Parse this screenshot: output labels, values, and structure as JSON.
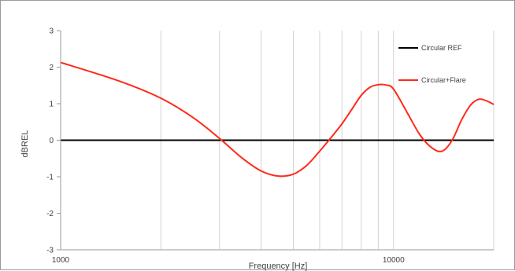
{
  "chart_data": {
    "type": "line",
    "xlabel": "Frequency [Hz]",
    "ylabel": "dBREL",
    "x_scale": "log",
    "xlim": [
      1000,
      20000
    ],
    "ylim": [
      -3,
      3
    ],
    "x_tick_labels": [
      "1000",
      "10000"
    ],
    "y_ticks": [
      -3,
      -2,
      -1,
      0,
      1,
      2,
      3
    ],
    "grid": "vertical",
    "legend_position": "top-right",
    "series": [
      {
        "name": "Circular REF",
        "color": "#000000",
        "x": [
          1000,
          20000
        ],
        "y": [
          0,
          0
        ]
      },
      {
        "name": "Circular+Flare",
        "color": "#ff2a1a",
        "x": [
          1000,
          1500,
          2000,
          2500,
          3000,
          3500,
          4000,
          4500,
          5000,
          5500,
          6000,
          6500,
          7000,
          7500,
          8000,
          8500,
          9000,
          9500,
          10000,
          11000,
          12000,
          13000,
          14000,
          15000,
          16000,
          17000,
          18000,
          19000,
          20000
        ],
        "y": [
          2.13,
          1.62,
          1.15,
          0.62,
          0.05,
          -0.48,
          -0.84,
          -0.98,
          -0.93,
          -0.68,
          -0.3,
          0.08,
          0.45,
          0.85,
          1.23,
          1.45,
          1.52,
          1.51,
          1.4,
          0.75,
          0.15,
          -0.2,
          -0.3,
          0.0,
          0.55,
          0.95,
          1.12,
          1.08,
          0.98
        ]
      }
    ]
  }
}
